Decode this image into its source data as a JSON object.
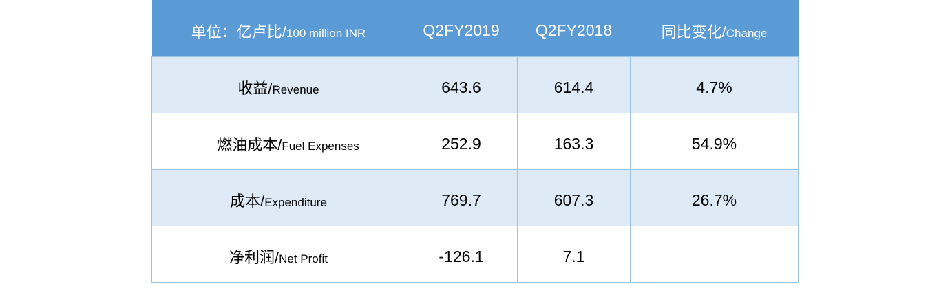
{
  "header": {
    "unit_cn": "单位：亿卢比/",
    "unit_en": "100 million INR",
    "col1": "Q2FY2019",
    "col2": "Q2FY2018",
    "change_cn": "同比变化/",
    "change_en": "Change"
  },
  "rows": [
    {
      "label_cn": "收益/",
      "label_en": "Revenue",
      "q2fy2019": "643.6",
      "q2fy2018": "614.4",
      "change": "4.7%"
    },
    {
      "label_cn": "燃油成本/",
      "label_en": "Fuel Expenses",
      "q2fy2019": "252.9",
      "q2fy2018": "163.3",
      "change": "54.9%"
    },
    {
      "label_cn": "成本/",
      "label_en": "Expenditure",
      "q2fy2019": "769.7",
      "q2fy2018": "607.3",
      "change": "26.7%"
    },
    {
      "label_cn": "净利润/",
      "label_en": "Net Profit",
      "q2fy2019": "-126.1",
      "q2fy2018": "7.1",
      "change": ""
    }
  ],
  "colors": {
    "header_bg": "#5b9bd5",
    "row_shaded": "#deebf7",
    "border": "#9dc3e6"
  }
}
